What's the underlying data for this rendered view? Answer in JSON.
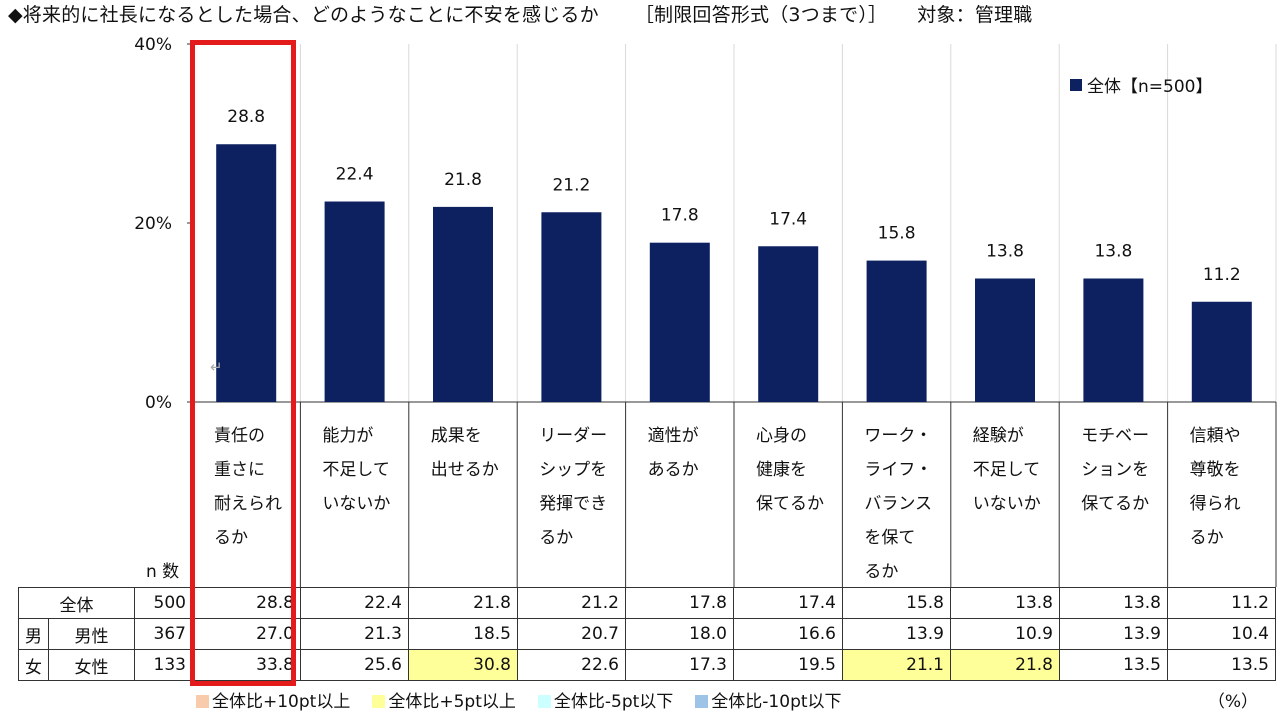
{
  "header": {
    "title": "◆将来的に社長になるとした場合、どのようなことに不安を感じるか",
    "format": "［制限回答形式（3つまで）］",
    "target": "対象：管理職"
  },
  "colors": {
    "bar": "#0d2160",
    "highlight_box": "#e31b1b",
    "plus10": "#f8cbad",
    "plus5": "#ffff99",
    "minus5": "#ccffff",
    "minus10": "#9dc3e6"
  },
  "chart_data": {
    "type": "bar",
    "categories": [
      [
        "責任の",
        "重さに",
        "耐えられ",
        "るか"
      ],
      [
        "能力が",
        "不足して",
        "いないか"
      ],
      [
        "成果を",
        "出せるか"
      ],
      [
        "リーダー",
        "シップを",
        "発揮でき",
        "るか"
      ],
      [
        "適性が",
        "あるか"
      ],
      [
        "心身の",
        "健康を",
        "保てるか"
      ],
      [
        "ワーク・",
        "ライフ・",
        "バランス",
        "を保て",
        "るか"
      ],
      [
        "経験が",
        "不足して",
        "いないか"
      ],
      [
        "モチベー",
        "ションを",
        "保てるか"
      ],
      [
        "信頼や",
        "尊敬を",
        "得られ",
        "るか"
      ]
    ],
    "series": [
      {
        "name": "全体【n=500】",
        "values": [
          28.8,
          22.4,
          21.8,
          21.2,
          17.8,
          17.4,
          15.8,
          13.8,
          13.8,
          11.2
        ]
      }
    ],
    "value_labels": [
      "28.8",
      "22.4",
      "21.8",
      "21.2",
      "17.8",
      "17.4",
      "15.8",
      "13.8",
      "13.8",
      "11.2"
    ],
    "ylim": [
      0,
      40
    ],
    "yticks": [
      "0%",
      "20%",
      "40%"
    ],
    "legend": "top-right",
    "grid": true
  },
  "table": {
    "n_header": "n 数",
    "gender_label_top": "男",
    "gender_label_bottom": "女",
    "rows": [
      {
        "label": "全体",
        "n": "500",
        "values": [
          "28.8",
          "22.4",
          "21.8",
          "21.2",
          "17.8",
          "17.4",
          "15.8",
          "13.8",
          "13.8",
          "11.2"
        ],
        "highlight": []
      },
      {
        "label": "男性",
        "n": "367",
        "values": [
          "27.0",
          "21.3",
          "18.5",
          "20.7",
          "18.0",
          "16.6",
          "13.9",
          "10.9",
          "13.9",
          "10.4"
        ],
        "highlight": []
      },
      {
        "label": "女性",
        "n": "133",
        "values": [
          "33.8",
          "25.6",
          "30.8",
          "22.6",
          "17.3",
          "19.5",
          "21.1",
          "21.8",
          "13.5",
          "13.5"
        ],
        "highlight": [
          2,
          6,
          7
        ]
      }
    ]
  },
  "legend_items": [
    {
      "label": "全体比+10pt以上",
      "color": "#f8cbad"
    },
    {
      "label": "全体比+5pt以上",
      "color": "#ffff99"
    },
    {
      "label": "全体比-5pt以下",
      "color": "#ccffff"
    },
    {
      "label": "全体比-10pt以下",
      "color": "#9dc3e6"
    }
  ],
  "unit": "（%）",
  "return_mark": "↵"
}
